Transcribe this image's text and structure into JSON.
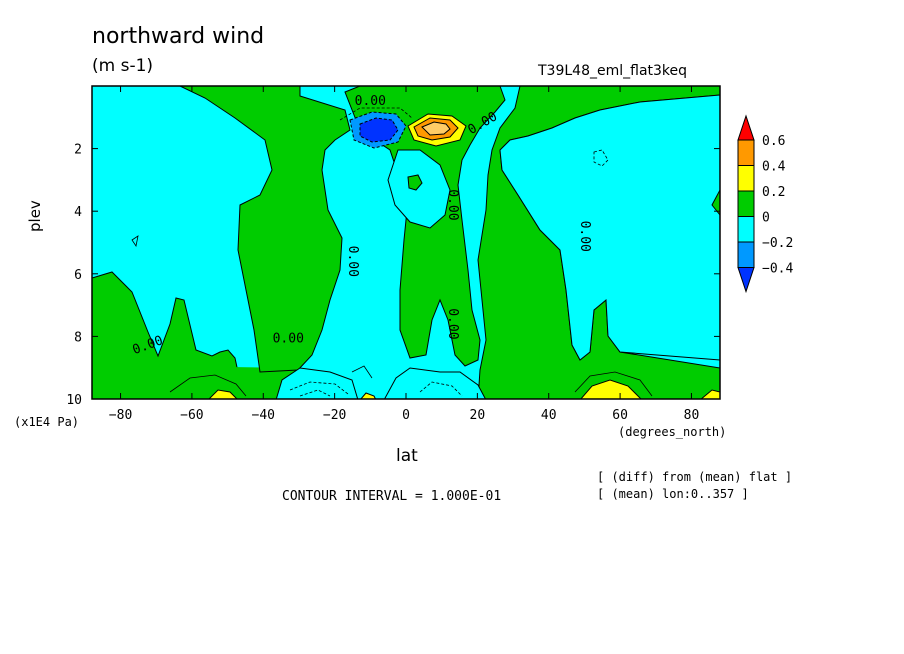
{
  "chart_data": {
    "type": "heatmap",
    "title": "northward wind",
    "units": "(m s-1)",
    "run_id": "T39L48_eml_flat3keq",
    "xlabel": "lat",
    "xunits": "(degrees_north)",
    "ylabel": "plev",
    "yunits": "(x1E4 Pa)",
    "xlim": [
      -88,
      88
    ],
    "ylim": [
      0,
      10
    ],
    "y_inverted": true,
    "x_ticks": [
      -80,
      -60,
      -40,
      -20,
      0,
      20,
      40,
      60,
      80
    ],
    "y_ticks": [
      2,
      4,
      6,
      8,
      10
    ],
    "contour_interval_label": "CONTOUR INTERVAL = 1.000E-01",
    "notes": [
      "[ (diff) from (mean) flat ]",
      "[ (mean) lon:0..357 ]"
    ],
    "contour_labels": [
      {
        "text": "0.00",
        "lat": -10,
        "plev": 0.6
      },
      {
        "text": "0.00",
        "lat": 22,
        "plev": 1.3
      },
      {
        "text": "0.00",
        "lat": 12,
        "plev": 3.8
      },
      {
        "text": "0.00",
        "lat": 49,
        "plev": 4.8
      },
      {
        "text": "0.00",
        "lat": -16,
        "plev": 5.6
      },
      {
        "text": "0.00",
        "lat": 12,
        "plev": 7.6
      },
      {
        "text": "0.00",
        "lat": -33,
        "plev": 8.2
      },
      {
        "text": "0.00",
        "lat": -72,
        "plev": 8.4
      }
    ],
    "colorbar": {
      "levels": [
        "0.6",
        "0.4",
        "0.2",
        "0",
        "-0.2",
        "-0.4"
      ],
      "colors": [
        "#ff0000",
        "#ff9900",
        "#ffff00",
        "#00cc00",
        "#00ffff",
        "#0099ff",
        "#0033ff"
      ]
    },
    "features": [
      {
        "label": "negative core",
        "lat": -10,
        "plev": 1.2,
        "value": -0.5
      },
      {
        "label": "positive core",
        "lat": 8,
        "plev": 1.2,
        "value": 0.55
      },
      {
        "label": "near-surface positive",
        "lat": 55,
        "plev": 9.7,
        "value": 0.25
      },
      {
        "label": "near-surface positive",
        "lat": -55,
        "plev": 9.9,
        "value": 0.25
      }
    ]
  }
}
